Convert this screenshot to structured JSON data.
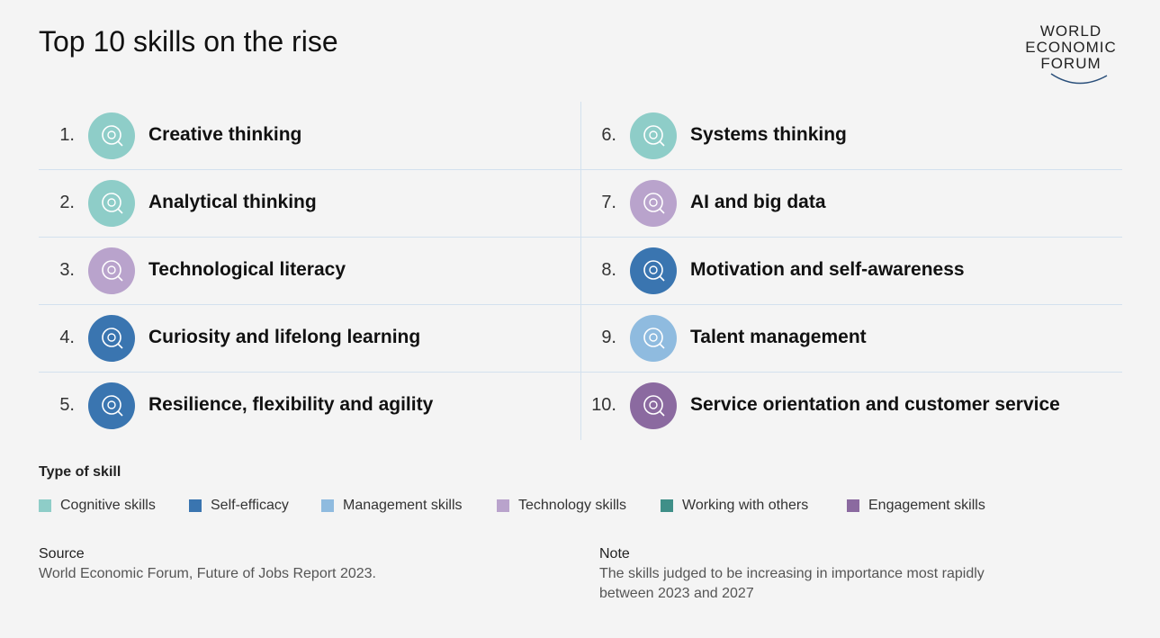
{
  "header": {
    "title": "Top 10 skills on the rise",
    "logo": [
      "WORLD",
      "ECONOMIC",
      "FORUM"
    ]
  },
  "skills": [
    {
      "rank": "1.",
      "name": "Creative thinking",
      "color": "#8ecdc8"
    },
    {
      "rank": "2.",
      "name": "Analytical thinking",
      "color": "#8ecdc8"
    },
    {
      "rank": "3.",
      "name": "Technological literacy",
      "color": "#b9a3cc"
    },
    {
      "rank": "4.",
      "name": "Curiosity and lifelong learning",
      "color": "#3a75b0"
    },
    {
      "rank": "5.",
      "name": "Resilience, flexibility and agility",
      "color": "#3a75b0"
    },
    {
      "rank": "6.",
      "name": "Systems thinking",
      "color": "#8ecdc8"
    },
    {
      "rank": "7.",
      "name": "AI and big data",
      "color": "#b9a3cc"
    },
    {
      "rank": "8.",
      "name": "Motivation and self-awareness",
      "color": "#3a75b0"
    },
    {
      "rank": "9.",
      "name": "Talent management",
      "color": "#8fbbdf"
    },
    {
      "rank": "10.",
      "name": "Service orientation and customer service",
      "color": "#8b6aa0"
    }
  ],
  "legend": {
    "title": "Type of skill",
    "items": [
      {
        "name": "Cognitive skills",
        "color": "#8ecdc8"
      },
      {
        "name": "Self-efficacy",
        "color": "#3a75b0"
      },
      {
        "name": "Management skills",
        "color": "#8fbbdf"
      },
      {
        "name": "Technology skills",
        "color": "#b9a3cc"
      },
      {
        "name": "Working with others",
        "color": "#3f8f88"
      },
      {
        "name": "Engagement skills",
        "color": "#8b6aa0"
      }
    ]
  },
  "source": {
    "label": "Source",
    "text": "World Economic Forum, Future of Jobs Report 2023."
  },
  "note": {
    "label": "Note",
    "text": "The skills judged to be increasing in importance most rapidly between 2023 and 2027"
  }
}
